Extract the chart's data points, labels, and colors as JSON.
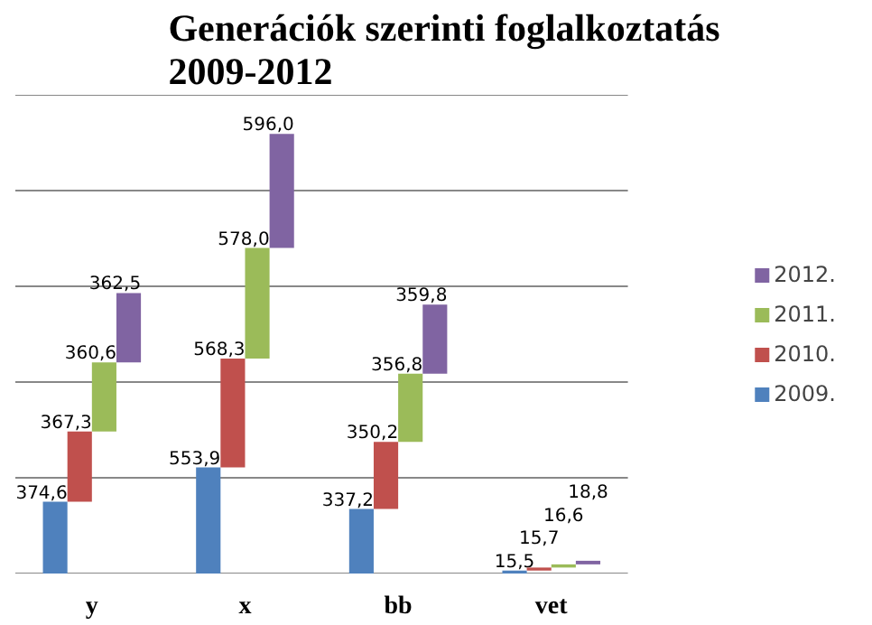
{
  "chart_data": {
    "type": "bar",
    "title": "Generációk szerinti foglalkoztatás 2009-2012",
    "categories": [
      "y",
      "x",
      "bb",
      "vet"
    ],
    "stacked": true,
    "series": [
      {
        "name": "2009.",
        "color": "#4f81bd",
        "values": [
          374.6,
          553.9,
          337.2,
          15.5
        ],
        "value_labels": [
          "374,6",
          "553,9",
          "337,2",
          "15,5"
        ]
      },
      {
        "name": "2010.",
        "color": "#c0504d",
        "values": [
          367.3,
          568.3,
          350.2,
          15.7
        ],
        "value_labels": [
          "367,3",
          "568,3",
          "350,2",
          "15,7"
        ]
      },
      {
        "name": "2011.",
        "color": "#9bbb59",
        "values": [
          360.6,
          578.0,
          356.8,
          16.6
        ],
        "value_labels": [
          "360,6",
          "578,0",
          "356,8",
          "16,6"
        ]
      },
      {
        "name": "2012.",
        "color": "#8064a2",
        "values": [
          362.5,
          596.0,
          359.8,
          18.8
        ],
        "value_labels": [
          "362,5",
          "596,0",
          "359,8",
          "18,8"
        ]
      }
    ],
    "ylim": [
      0,
      2500
    ],
    "yticks": [
      {
        "value": 0,
        "label": null
      },
      {
        "value": 500,
        "label": null
      },
      {
        "value": 1000,
        "label": null
      },
      {
        "value": 1500,
        "label": null
      },
      {
        "value": 2000,
        "label": null
      },
      {
        "value": 2500,
        "label": null
      }
    ],
    "tick_labels": "x",
    "grid": "y",
    "legend": "right"
  }
}
